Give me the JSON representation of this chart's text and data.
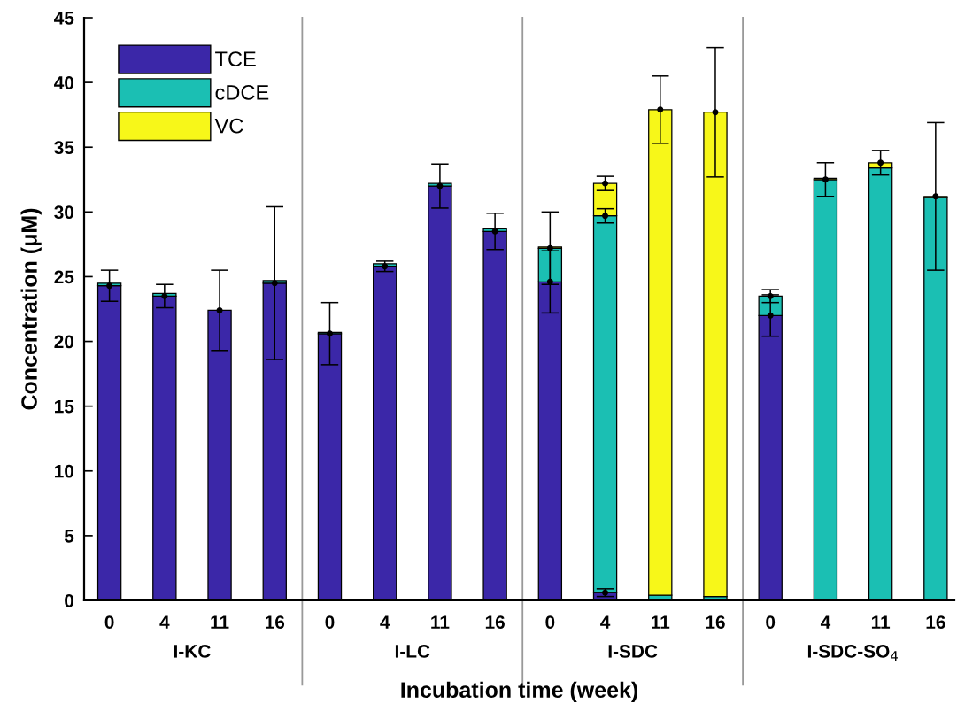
{
  "chart_data": {
    "type": "bar",
    "stacked": true,
    "xlabel": "Incubation time (week)",
    "ylabel": "Concentration (μM)",
    "categories": [
      "0",
      "4",
      "11",
      "16",
      "0",
      "4",
      "11",
      "16",
      "0",
      "4",
      "11",
      "16",
      "0",
      "4",
      "11",
      "16"
    ],
    "annotations": [
      "I-KC",
      "I-LC",
      "I-SDC",
      "I-SDC-SO$_{4}$"
    ],
    "series": [
      {
        "name": "TCE",
        "color": "#3b27a8",
        "values": [
          24.3,
          23.5,
          22.4,
          24.5,
          20.6,
          25.8,
          32.0,
          28.5,
          24.6,
          0.6,
          null,
          null,
          22.0,
          null,
          null,
          null
        ],
        "errors": [
          1.2,
          0.9,
          3.1,
          5.9,
          2.4,
          0.4,
          1.7,
          1.4,
          2.4,
          0.3,
          null,
          null,
          1.6,
          null,
          null,
          null
        ]
      },
      {
        "name": "cDCE",
        "color": "#1bbfb3",
        "values": [
          0.2,
          0.2,
          null,
          0.2,
          0.1,
          0.2,
          0.2,
          0.2,
          2.6,
          29.1,
          0.4,
          0.3,
          1.5,
          32.5,
          33.4,
          31.1
        ],
        "errors": [
          null,
          null,
          null,
          null,
          null,
          null,
          null,
          null,
          2.8,
          0.55,
          null,
          null,
          0.5,
          1.3,
          null,
          null
        ]
      },
      {
        "name": "VC",
        "color": "#f7f719",
        "values": [
          null,
          null,
          null,
          null,
          null,
          null,
          null,
          null,
          0.1,
          2.5,
          37.5,
          37.4,
          null,
          0.1,
          0.4,
          0.1
        ],
        "errors": [
          null,
          null,
          null,
          null,
          null,
          null,
          null,
          null,
          null,
          0.55,
          2.6,
          5.0,
          null,
          null,
          0.95,
          5.7
        ]
      }
    ],
    "ylim": [
      0,
      45
    ],
    "yticks": [
      0,
      5,
      10,
      15,
      20,
      25,
      30,
      35,
      40,
      45
    ],
    "grid": false,
    "legend": "top left",
    "marker": "circle"
  }
}
